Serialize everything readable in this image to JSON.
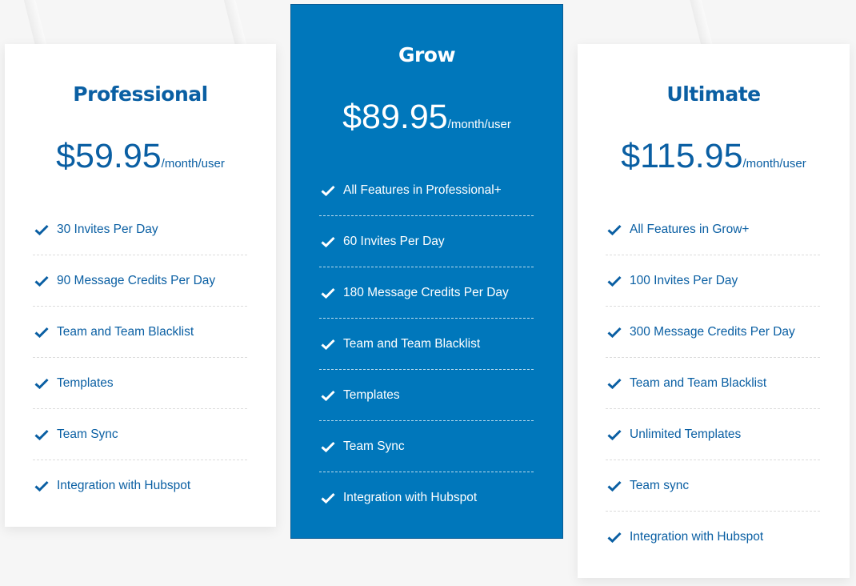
{
  "colors": {
    "brand_blue": "#0a5fa3",
    "featured_bg": "#0077bb",
    "featured_text": "#ffffff"
  },
  "plans": [
    {
      "name": "Professional",
      "price": "$59.95",
      "period": "/month/user",
      "icon": "check-icon",
      "features": [
        "30 Invites Per Day",
        "90 Message Credits Per Day",
        "Team and Team Blacklist",
        "Templates",
        "Team Sync",
        "Integration with Hubspot"
      ]
    },
    {
      "name": "Grow",
      "price": "$89.95",
      "period": "/month/user",
      "icon": "check-icon",
      "features": [
        "All Features in Professional+",
        "60 Invites Per Day",
        "180 Message Credits Per Day",
        "Team and Team Blacklist",
        "Templates",
        "Team Sync",
        "Integration with Hubspot"
      ]
    },
    {
      "name": "Ultimate",
      "price": "$115.95",
      "period": "/month/user",
      "icon": "check-icon",
      "features": [
        "All Features in Grow+",
        "100 Invites Per Day",
        "300 Message Credits Per Day",
        "Team and Team Blacklist",
        "Unlimited Templates",
        "Team sync",
        "Integration with Hubspot"
      ]
    }
  ]
}
